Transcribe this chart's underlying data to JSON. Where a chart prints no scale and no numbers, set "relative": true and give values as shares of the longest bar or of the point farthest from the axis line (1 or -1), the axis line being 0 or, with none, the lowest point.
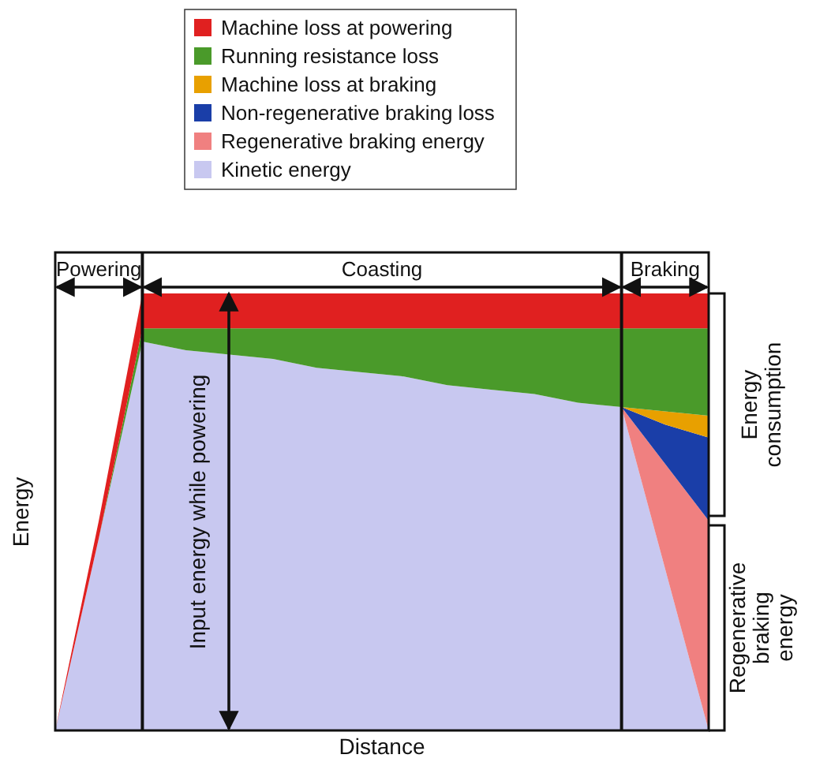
{
  "chart_data": {
    "type": "area",
    "stacked": true,
    "relative": true,
    "legend": "top",
    "xlabel": "Distance",
    "ylabel": "Energy",
    "categories": [
      null,
      null,
      null,
      null,
      null,
      null,
      null,
      null,
      null,
      null,
      null,
      null,
      null,
      null,
      null,
      null
    ],
    "series": [
      {
        "name": "Kinetic energy",
        "color": "#c8c8f0",
        "values": [
          0,
          0.44,
          0.89,
          0.87,
          0.86,
          0.85,
          0.83,
          0.82,
          0.81,
          0.79,
          0.78,
          0.77,
          0.75,
          0.74,
          0.37,
          0
        ]
      },
      {
        "name": "Regenerative braking energy",
        "color": "#f08080",
        "values": [
          null,
          null,
          null,
          null,
          null,
          null,
          null,
          null,
          null,
          null,
          null,
          null,
          null,
          0,
          0.24,
          0.48
        ]
      },
      {
        "name": "Non-regenerative braking loss",
        "color": "#1a3ea8",
        "values": [
          null,
          null,
          null,
          null,
          null,
          null,
          null,
          null,
          null,
          null,
          null,
          null,
          null,
          0,
          0.09,
          0.19
        ]
      },
      {
        "name": "Machine loss at braking",
        "color": "#e8a000",
        "values": [
          null,
          null,
          null,
          null,
          null,
          null,
          null,
          null,
          null,
          null,
          null,
          null,
          null,
          0,
          0.03,
          0.05
        ]
      },
      {
        "name": "Running resistance loss",
        "color": "#4a9a2a",
        "values": [
          0,
          0,
          0.03,
          0.05,
          0.06,
          0.07,
          0.09,
          0.1,
          0.11,
          0.13,
          0.14,
          0.15,
          0.17,
          0.18,
          0.19,
          0.2
        ]
      },
      {
        "name": "Machine loss at powering",
        "color": "#e02020",
        "values": [
          0,
          0.04,
          0.08,
          0.08,
          0.08,
          0.08,
          0.08,
          0.08,
          0.08,
          0.08,
          0.08,
          0.08,
          0.08,
          0.08,
          0.08,
          0.08
        ]
      }
    ],
    "annotations": [
      "Powering",
      "Coasting",
      "Braking",
      "Input energy while powering",
      "Energy consumption",
      "Regenerative braking energy"
    ]
  }
}
